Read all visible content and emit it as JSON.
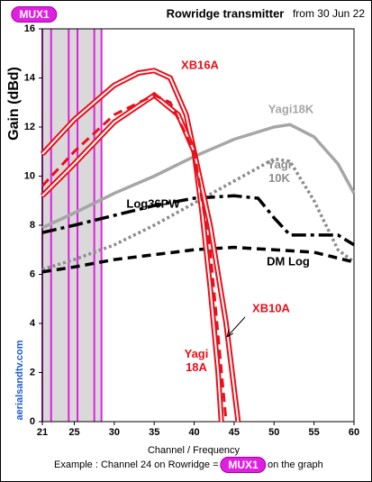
{
  "chart_data": {
    "type": "line",
    "title": "Rowridge transmitter",
    "subtitle": "from 30 Jun 22",
    "badge": "MUX1",
    "x_label": "Channel / Frequency",
    "y_label": "Gain (dBd)",
    "footer_before": "Example : Channel 24 on Rowridge =",
    "footer_badge": "MUX1",
    "footer_after": "on the graph",
    "site": "aerialsandtv.com",
    "xlim": [
      21,
      60
    ],
    "xticks": [
      21,
      25,
      30,
      35,
      40,
      45,
      50,
      55,
      60
    ],
    "ylim": [
      0,
      16
    ],
    "yticks": [
      0,
      2,
      4,
      6,
      8,
      10,
      12,
      14,
      16
    ],
    "grid": false,
    "highlight_band": [
      21,
      28.4
    ],
    "highlight_lines": [
      21,
      22.1,
      24.3,
      25.4,
      27.5,
      28.4
    ],
    "series": [
      {
        "name": "Yagi18K",
        "color": "#a6a6a6",
        "style": "solid",
        "x": [
          21,
          25,
          30,
          35,
          40,
          45,
          50,
          52,
          55,
          58,
          60
        ],
        "values": [
          7.9,
          8.5,
          9.3,
          10.0,
          10.8,
          11.5,
          12.0,
          12.1,
          11.6,
          10.5,
          9.3
        ]
      },
      {
        "name": "Yagi\n10K",
        "color": "#8c8c8c",
        "style": "dotted",
        "x": [
          21,
          25,
          30,
          35,
          40,
          45,
          50,
          52,
          55,
          58,
          60
        ],
        "values": [
          6.2,
          6.6,
          7.2,
          8.0,
          8.9,
          9.8,
          10.7,
          10.6,
          9.0,
          7.0,
          6.5
        ]
      },
      {
        "name": "Log36PW",
        "color": "#000000",
        "style": "dashdot",
        "x": [
          21,
          25,
          30,
          35,
          40,
          45,
          48,
          50,
          52,
          55,
          58,
          60
        ],
        "values": [
          7.7,
          8.0,
          8.4,
          8.8,
          9.1,
          9.2,
          9.1,
          8.3,
          7.6,
          7.6,
          7.6,
          7.2
        ]
      },
      {
        "name": "DM Log",
        "color": "#000000",
        "style": "dashed",
        "x": [
          21,
          25,
          30,
          35,
          40,
          45,
          50,
          55,
          60
        ],
        "values": [
          6.1,
          6.3,
          6.6,
          6.8,
          7.0,
          7.1,
          7.0,
          6.9,
          6.5
        ]
      },
      {
        "name": "XB16A",
        "color": "#e8101a",
        "style": "double",
        "x": [
          21,
          25,
          30,
          33,
          35,
          37,
          39,
          40,
          41,
          42,
          43,
          43.4
        ],
        "values": [
          10.9,
          12.3,
          13.7,
          14.2,
          14.3,
          14.0,
          12.5,
          11.0,
          8.5,
          5.5,
          2.0,
          0
        ]
      },
      {
        "name": "XB10A",
        "color": "#e8101a",
        "style": "double",
        "x": [
          21,
          25,
          30,
          35,
          38,
          40,
          42,
          44,
          45.5
        ],
        "values": [
          9.2,
          10.5,
          12.2,
          13.3,
          12.5,
          11.0,
          8.0,
          4.0,
          0
        ]
      },
      {
        "name": "Yagi\n18A",
        "color": "#e8101a",
        "style": "dashed",
        "x": [
          21,
          25,
          30,
          35,
          37,
          40,
          42,
          44
        ],
        "values": [
          9.6,
          11.0,
          12.5,
          13.3,
          13.0,
          11.0,
          7.0,
          0
        ]
      }
    ]
  }
}
